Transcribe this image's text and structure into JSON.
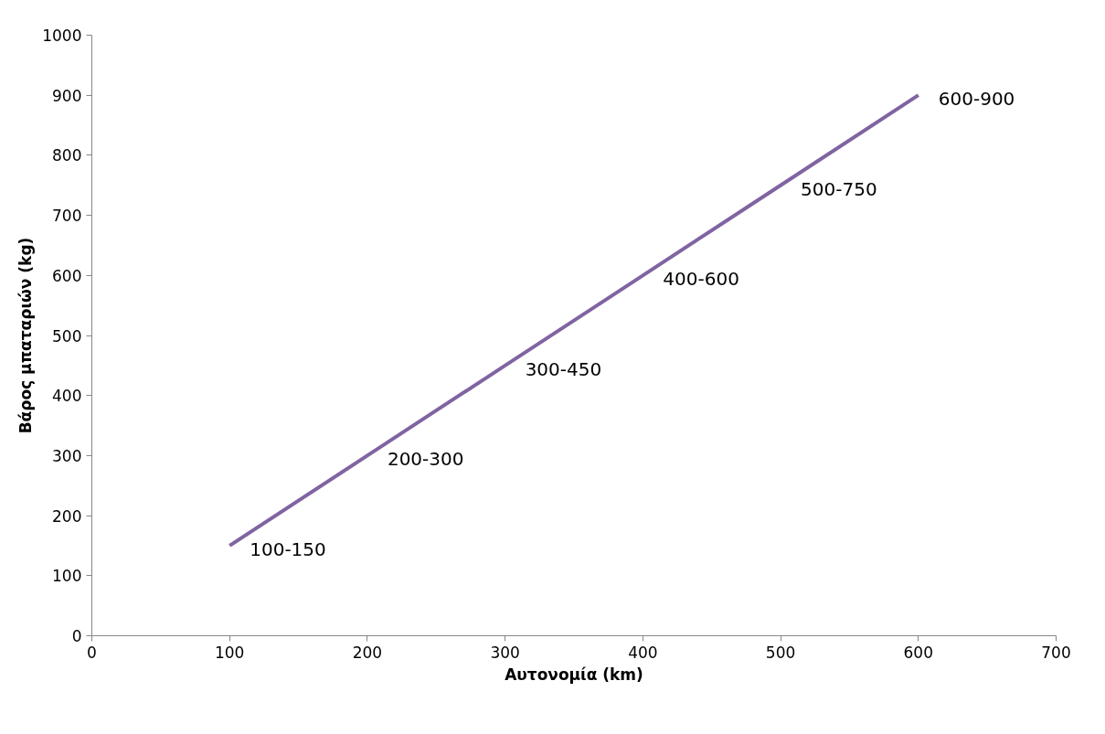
{
  "chart_data": {
    "type": "line",
    "xlabel": "Αυτονομία (km)",
    "ylabel": "Βάρος μπαταριών (kg)",
    "x": [
      100,
      200,
      300,
      400,
      500,
      600
    ],
    "series": [
      {
        "color": "#8064a2",
        "values": [
          150,
          300,
          450,
          600,
          750,
          900
        ],
        "value_labels": [
          "100-150",
          "200-300",
          "300-450",
          "400-600",
          "500-750",
          "600-900"
        ]
      }
    ],
    "xlim": [
      0,
      700
    ],
    "xticks": [
      0,
      100,
      200,
      300,
      400,
      500,
      600,
      700
    ],
    "ylim": [
      0,
      1000
    ],
    "yticks": [
      0,
      100,
      200,
      300,
      400,
      500,
      600,
      700,
      800,
      900,
      1000
    ],
    "grid": false
  }
}
